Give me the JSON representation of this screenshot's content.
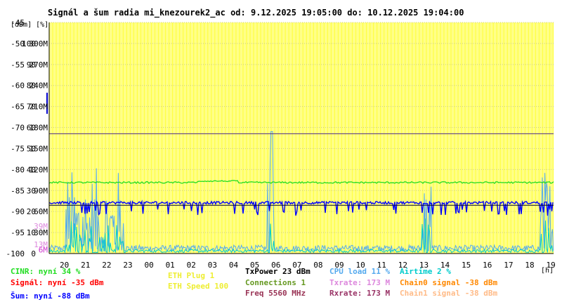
{
  "chart_data": {
    "type": "line",
    "title": "Signál a šum radia mi_knezourek2_ac od: 9.12.2025 19:05:00 do: 10.12.2025 19:04:00",
    "unit_label": "[dBm] [%]",
    "x_unit": "[h]",
    "y_dbm_range": [
      -100,
      -45
    ],
    "y_ticks": [
      {
        "dbm": -45,
        "pct": "",
        "rate": ""
      },
      {
        "dbm": -50,
        "pct": "100",
        "rate": "300M"
      },
      {
        "dbm": -55,
        "pct": "90",
        "rate": "270M"
      },
      {
        "dbm": -60,
        "pct": "80",
        "rate": "240M"
      },
      {
        "dbm": -65,
        "pct": "70",
        "rate": "210M"
      },
      {
        "dbm": -70,
        "pct": "60",
        "rate": "180M"
      },
      {
        "dbm": -75,
        "pct": "50",
        "rate": "150M"
      },
      {
        "dbm": -80,
        "pct": "40",
        "rate": "120M"
      },
      {
        "dbm": -85,
        "pct": "30",
        "rate": "90M"
      },
      {
        "dbm": -90,
        "pct": "20",
        "rate": "60M"
      },
      {
        "dbm": -95,
        "pct": "10",
        "rate": "30M"
      },
      {
        "dbm": -100,
        "pct": "0",
        "rate": ""
      }
    ],
    "extra_rate_labels": [
      {
        "dbm": -93.5,
        "text": "39M",
        "color": "#dd88dd"
      },
      {
        "dbm": -97.8,
        "text": "13M",
        "color": "#dd88dd"
      },
      {
        "dbm": -99.1,
        "text": "6M",
        "color": "#cc33cc"
      }
    ],
    "x_ticks": [
      "20",
      "21",
      "22",
      "23",
      "00",
      "01",
      "02",
      "03",
      "04",
      "05",
      "06",
      "07",
      "08",
      "09",
      "10",
      "11",
      "12",
      "13",
      "14",
      "15",
      "16",
      "17",
      "18",
      "19"
    ],
    "series": [
      {
        "name": "CINR",
        "color": "#22dd22",
        "unit": "%",
        "typical": 34
      },
      {
        "name": "Signál",
        "color": "#ff0000",
        "unit": "dBm",
        "typical": -35
      },
      {
        "name": "Šum",
        "color": "#0000ff",
        "unit": "dBm",
        "typical": -88
      },
      {
        "name": "CPU load",
        "color": "#55aaee",
        "unit": "%",
        "typical": 11
      },
      {
        "name": "Airtime",
        "color": "#00cccc",
        "unit": "%",
        "typical": 2
      },
      {
        "name": "Txrate",
        "color": "#dd88dd",
        "unit": "M",
        "typical": 173
      }
    ],
    "reference_lines": [
      {
        "dbm": -71.5,
        "color": "#553388"
      },
      {
        "dbm": -88.5,
        "color": "#000033"
      }
    ]
  },
  "legend": [
    {
      "text": "CINR: nyní 34 %",
      "color": "#22dd22"
    },
    {
      "text": "Signál: nyní -35 dBm",
      "color": "#ff0000"
    },
    {
      "text": "Šum: nyní -88 dBm",
      "color": "#0000ff"
    },
    {
      "text": "ETH Plug 1",
      "color": "#eeee33"
    },
    {
      "text": "ETH Speed 100",
      "color": "#eeee33"
    },
    {
      "text": "TxPower 23 dBm",
      "color": "#000000"
    },
    {
      "text": "Connections 1",
      "color": "#669922"
    },
    {
      "text": "Freq 5560 MHz",
      "color": "#993355"
    },
    {
      "text": "CPU load 11 %",
      "color": "#55aaee"
    },
    {
      "text": "Txrate: 173 M",
      "color": "#dd88dd"
    },
    {
      "text": "Rxrate: 173 M",
      "color": "#993366"
    },
    {
      "text": "Airtime 2 %",
      "color": "#00cccc"
    },
    {
      "text": "Chain0 signal -38 dBm",
      "color": "#ff8800"
    },
    {
      "text": "Chain1 signal -38 dBm",
      "color": "#ffbb88"
    }
  ],
  "colors": {
    "plot_bg": "#ffff88",
    "vertical_grid": "#ffff44",
    "horizontal_grid": "#cccc88"
  }
}
